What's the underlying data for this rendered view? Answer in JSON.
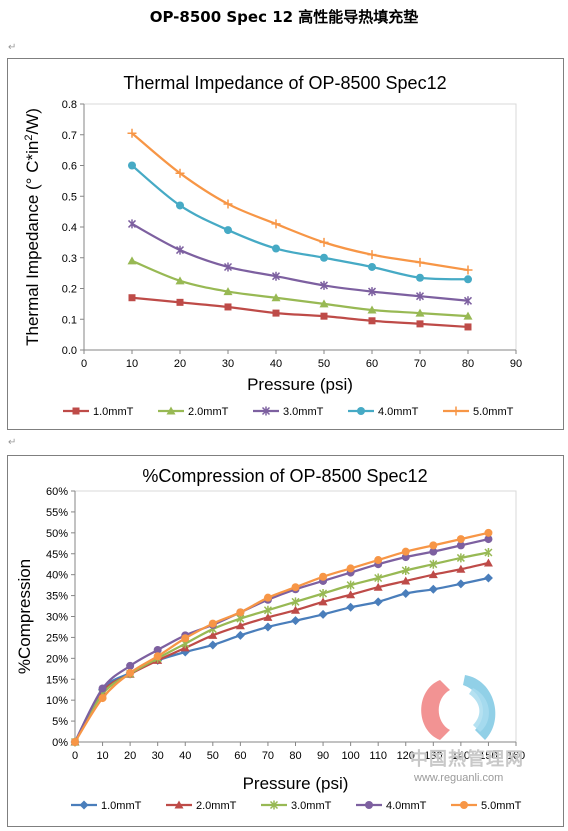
{
  "page": {
    "title": "OP-8500 Spec 12  高性能导热填充垫",
    "para_mark": "↵"
  },
  "watermark": {
    "text": "中国热管理网",
    "url": "www.reguanli.com"
  },
  "chart_data": [
    {
      "type": "line",
      "title": "Thermal Impedance of OP-8500 Spec12",
      "xlabel": "Pressure (psi)",
      "ylabel_parts": [
        "Thermal Impedance (° C*in",
        "2",
        "/W)"
      ],
      "xlim": [
        0,
        90
      ],
      "ylim": [
        0,
        0.8
      ],
      "xticks": [
        0,
        10,
        20,
        30,
        40,
        50,
        60,
        70,
        80,
        90
      ],
      "yticks": [
        "0.0",
        "0.1",
        "0.2",
        "0.3",
        "0.4",
        "0.5",
        "0.6",
        "0.7",
        "0.8"
      ],
      "grid": false,
      "legend_position": "bottom",
      "x": [
        10,
        20,
        30,
        40,
        50,
        60,
        70,
        80
      ],
      "series": [
        {
          "name": "1.0mmT",
          "color": "#be4b48",
          "marker": "square",
          "values": [
            0.17,
            0.155,
            0.14,
            0.12,
            0.11,
            0.095,
            0.085,
            0.075
          ]
        },
        {
          "name": "2.0mmT",
          "color": "#98b954",
          "marker": "triangle",
          "values": [
            0.29,
            0.225,
            0.19,
            0.17,
            0.15,
            0.13,
            0.12,
            0.11
          ]
        },
        {
          "name": "3.0mmT",
          "color": "#7d60a0",
          "marker": "star",
          "values": [
            0.41,
            0.325,
            0.27,
            0.24,
            0.21,
            0.19,
            0.175,
            0.16
          ]
        },
        {
          "name": "4.0mmT",
          "color": "#46aac5",
          "marker": "circle",
          "values": [
            0.6,
            0.47,
            0.39,
            0.33,
            0.3,
            0.27,
            0.235,
            0.23
          ]
        },
        {
          "name": "5.0mmT",
          "color": "#f79646",
          "marker": "plus",
          "values": [
            0.705,
            0.575,
            0.475,
            0.41,
            0.35,
            0.31,
            0.285,
            0.26
          ]
        }
      ]
    },
    {
      "type": "line",
      "title": "%Compression of OP-8500 Spec12",
      "xlabel": "Pressure (psi)",
      "ylabel": "%Compression",
      "xlim": [
        0,
        160
      ],
      "ylim": [
        0,
        60
      ],
      "xticks": [
        0,
        10,
        20,
        30,
        40,
        50,
        60,
        70,
        80,
        90,
        100,
        110,
        120,
        130,
        140,
        150,
        160
      ],
      "yticks": [
        "0%",
        "5%",
        "10%",
        "15%",
        "20%",
        "25%",
        "30%",
        "35%",
        "40%",
        "45%",
        "50%",
        "55%",
        "60%"
      ],
      "grid": false,
      "legend_position": "bottom",
      "x": [
        0,
        10,
        20,
        30,
        40,
        50,
        60,
        70,
        80,
        90,
        100,
        110,
        120,
        130,
        140,
        150
      ],
      "series": [
        {
          "name": "1.0mmT",
          "color": "#4a7ebb",
          "marker": "diamond",
          "values": [
            0,
            12.5,
            16.5,
            19.5,
            21.5,
            23.2,
            25.5,
            27.5,
            29,
            30.5,
            32.2,
            33.5,
            35.5,
            36.5,
            37.8,
            39.2
          ]
        },
        {
          "name": "2.0mmT",
          "color": "#be4b48",
          "marker": "triangle",
          "values": [
            0,
            12,
            16.2,
            19.5,
            22.5,
            25.5,
            27.8,
            29.8,
            31.5,
            33.5,
            35.2,
            37,
            38.5,
            40,
            41.3,
            42.8
          ]
        },
        {
          "name": "3.0mmT",
          "color": "#98b954",
          "marker": "star",
          "values": [
            0,
            11.5,
            16.3,
            20,
            23.5,
            27,
            29.5,
            31.5,
            33.5,
            35.5,
            37.5,
            39.2,
            41,
            42.5,
            44,
            45.3
          ]
        },
        {
          "name": "4.0mmT",
          "color": "#7d60a0",
          "marker": "circle",
          "values": [
            0,
            12.8,
            18.2,
            22,
            25.5,
            28,
            31,
            34,
            36.5,
            38.5,
            40.5,
            42.5,
            44.2,
            45.5,
            47,
            48.5
          ]
        },
        {
          "name": "5.0mmT",
          "color": "#f79646",
          "marker": "circle",
          "values": [
            0,
            10.5,
            16.5,
            20.5,
            24.8,
            28.3,
            31,
            34.5,
            37,
            39.5,
            41.5,
            43.5,
            45.5,
            47,
            48.5,
            50
          ]
        }
      ]
    }
  ]
}
